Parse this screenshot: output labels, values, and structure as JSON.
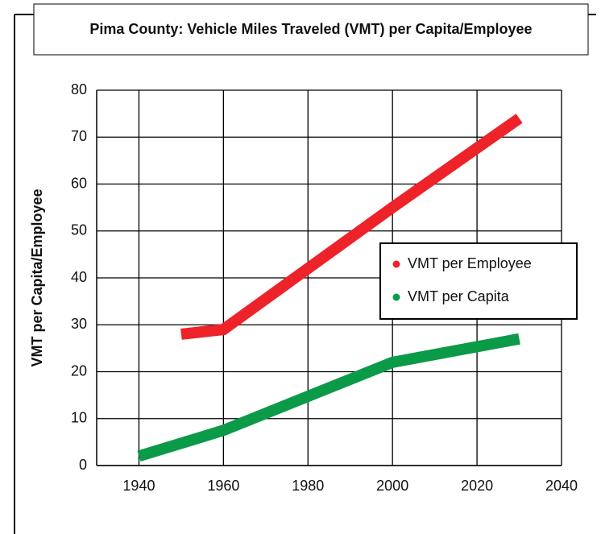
{
  "chart_data": {
    "type": "line",
    "title": "Pima County: Vehicle Miles Traveled (VMT) per Capita/Employee",
    "y_label": "VMT per Capita/Employee",
    "series": [
      {
        "name": "VMT per Employee",
        "color": "#ee2229",
        "x": [
          1950,
          1960,
          2000,
          2030
        ],
        "values": [
          28,
          29,
          55,
          74
        ]
      },
      {
        "name": "VMT per Capita",
        "color": "#0a9a48",
        "x": [
          1940,
          1960,
          2000,
          2030
        ],
        "values": [
          2,
          7.5,
          22,
          27
        ]
      }
    ],
    "xlim": [
      1930,
      2040
    ],
    "xticks": [
      1940,
      1960,
      1980,
      2000,
      2020,
      2040
    ],
    "ylim": [
      0,
      80
    ],
    "yticks": [
      0,
      10,
      20,
      30,
      40,
      50,
      60,
      70,
      80
    ],
    "grid": true,
    "legend": "right"
  }
}
